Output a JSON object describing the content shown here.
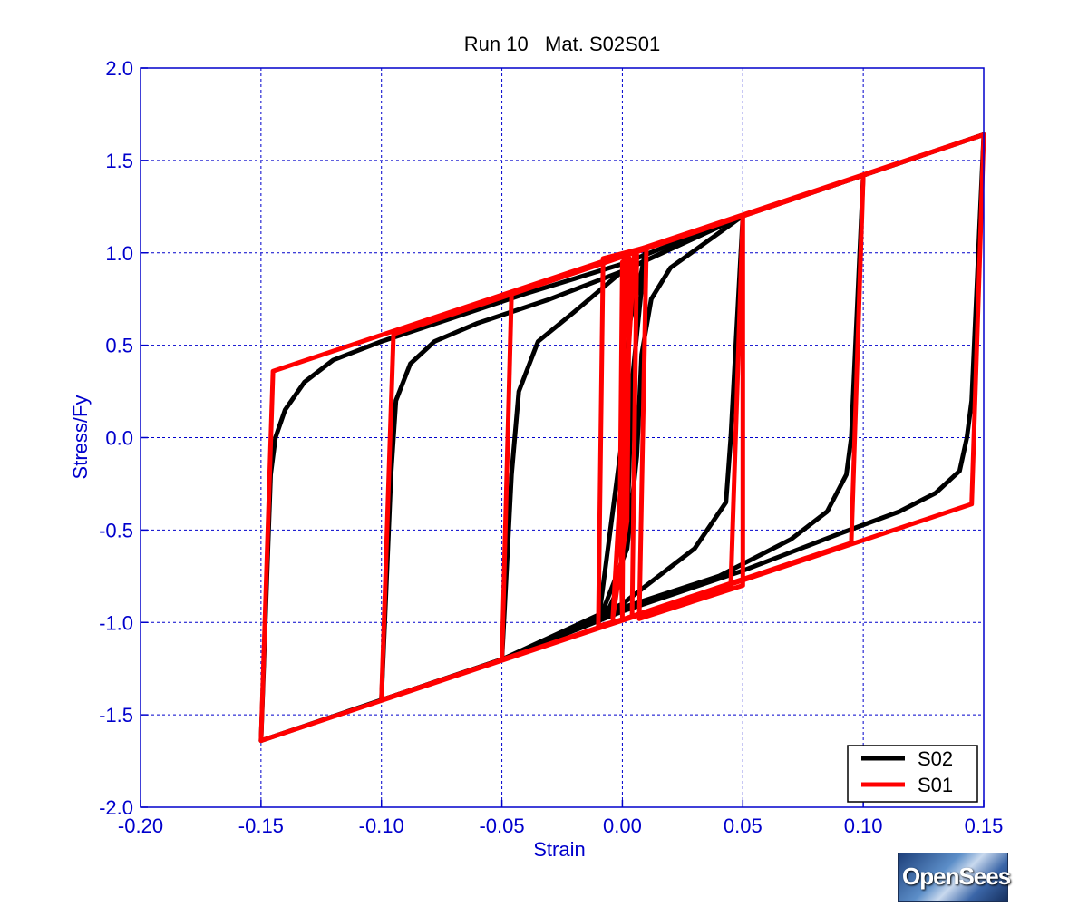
{
  "chart_data": {
    "type": "line",
    "title": "Run 10   Mat. S02S01",
    "xlabel": "Strain",
    "ylabel": "Stress/Fy",
    "xlim": [
      -0.2,
      0.15
    ],
    "ylim": [
      -2.0,
      2.0
    ],
    "xticks": [
      "-0.20",
      "-0.15",
      "-0.10",
      "-0.05",
      "0.00",
      "0.05",
      "0.10",
      "0.15"
    ],
    "yticks": [
      "2.0",
      "1.5",
      "1.0",
      "0.5",
      "0.0",
      "-0.5",
      "-1.0",
      "-1.5",
      "-2.0"
    ],
    "grid": true,
    "legend_position": "bottom-right",
    "series": [
      {
        "name": "S02",
        "color": "#000000",
        "cycles": [
          [
            [
              0.0,
              0.0
            ],
            [
              0.003,
              0.62
            ],
            [
              0.008,
              0.9
            ],
            [
              0.0095,
              1.01
            ],
            [
              0.004,
              0.3
            ],
            [
              0.002,
              -0.5
            ],
            [
              -0.003,
              -0.85
            ],
            [
              -0.005,
              -0.91
            ],
            [
              -0.01,
              -1.0
            ],
            [
              0.0,
              0.0
            ]
          ],
          [
            [
              -0.01,
              -1.0
            ],
            [
              0.002,
              -0.6
            ],
            [
              0.006,
              -0.1
            ],
            [
              0.008,
              0.45
            ],
            [
              0.012,
              0.75
            ],
            [
              0.02,
              0.92
            ],
            [
              0.05,
              1.2
            ]
          ],
          [
            [
              0.05,
              1.2
            ],
            [
              0.045,
              0.0
            ],
            [
              0.043,
              -0.35
            ],
            [
              0.03,
              -0.6
            ],
            [
              0.0,
              -0.9
            ],
            [
              -0.05,
              -1.2
            ]
          ],
          [
            [
              -0.05,
              -1.2
            ],
            [
              -0.046,
              -0.2
            ],
            [
              -0.043,
              0.25
            ],
            [
              -0.035,
              0.52
            ],
            [
              -0.02,
              0.68
            ],
            [
              0.0,
              0.9
            ],
            [
              0.05,
              1.2
            ],
            [
              0.1,
              1.42
            ]
          ],
          [
            [
              0.1,
              1.42
            ],
            [
              0.095,
              0.0
            ],
            [
              0.093,
              -0.2
            ],
            [
              0.085,
              -0.4
            ],
            [
              0.07,
              -0.55
            ],
            [
              0.04,
              -0.75
            ],
            [
              0.0,
              -0.92
            ],
            [
              -0.05,
              -1.2
            ],
            [
              -0.1,
              -1.42
            ]
          ],
          [
            [
              -0.1,
              -1.42
            ],
            [
              -0.096,
              -0.2
            ],
            [
              -0.094,
              0.2
            ],
            [
              -0.088,
              0.4
            ],
            [
              -0.078,
              0.52
            ],
            [
              -0.06,
              0.62
            ],
            [
              -0.03,
              0.75
            ],
            [
              0.0,
              0.9
            ],
            [
              0.05,
              1.2
            ],
            [
              0.1,
              1.42
            ],
            [
              0.15,
              1.64
            ]
          ],
          [
            [
              0.15,
              1.64
            ],
            [
              0.145,
              0.2
            ],
            [
              0.143,
              0.0
            ],
            [
              0.14,
              -0.18
            ],
            [
              0.13,
              -0.3
            ],
            [
              0.115,
              -0.4
            ],
            [
              0.09,
              -0.52
            ],
            [
              0.05,
              -0.72
            ],
            [
              0.0,
              -0.94
            ],
            [
              -0.05,
              -1.2
            ],
            [
              -0.1,
              -1.42
            ],
            [
              -0.15,
              -1.64
            ]
          ],
          [
            [
              -0.15,
              -1.64
            ],
            [
              -0.146,
              -0.2
            ],
            [
              -0.144,
              0.0
            ],
            [
              -0.14,
              0.15
            ],
            [
              -0.132,
              0.3
            ],
            [
              -0.12,
              0.42
            ],
            [
              -0.1,
              0.52
            ],
            [
              -0.07,
              0.65
            ],
            [
              -0.04,
              0.78
            ],
            [
              0.0,
              0.94
            ],
            [
              0.05,
              1.2
            ],
            [
              0.1,
              1.42
            ],
            [
              0.15,
              1.64
            ]
          ]
        ]
      },
      {
        "name": "S01",
        "color": "#ff0000",
        "cycles": [
          [
            [
              0.0,
              0.0
            ],
            [
              0.001,
              0.96
            ],
            [
              0.0,
              0.95
            ],
            [
              -0.001,
              -0.4
            ],
            [
              0.0,
              -0.97
            ],
            [
              0.001,
              0.98
            ],
            [
              0.003,
              0.97
            ],
            [
              0.002,
              -0.45
            ],
            [
              -0.004,
              -0.98
            ],
            [
              0.005,
              1.0
            ],
            [
              0.006,
              0.99
            ],
            [
              0.004,
              -0.97
            ],
            [
              -0.01,
              -1.02
            ],
            [
              -0.008,
              0.97
            ],
            [
              0.01,
              1.03
            ],
            [
              0.007,
              -0.98
            ]
          ],
          [
            [
              0.007,
              -0.98
            ],
            [
              0.05,
              -0.8
            ],
            [
              0.05,
              1.2
            ],
            [
              0.045,
              -0.8
            ],
            [
              -0.05,
              -1.2
            ],
            [
              -0.046,
              0.78
            ],
            [
              0.1,
              1.42
            ],
            [
              0.095,
              -0.57
            ],
            [
              -0.1,
              -1.42
            ],
            [
              -0.095,
              0.56
            ],
            [
              0.15,
              1.64
            ],
            [
              0.145,
              -0.36
            ],
            [
              -0.15,
              -1.64
            ],
            [
              -0.145,
              0.36
            ],
            [
              0.15,
              1.64
            ]
          ]
        ]
      }
    ]
  },
  "logo": {
    "text": "OpenSees"
  }
}
